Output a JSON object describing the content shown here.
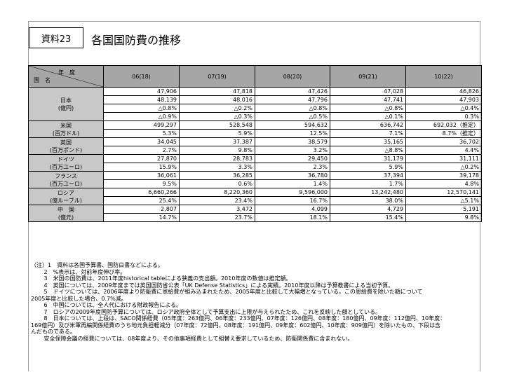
{
  "title": {
    "label": "資料23",
    "text": "各国国防費の推移"
  },
  "header": {
    "corner_year": "年　度",
    "corner_country": "国　名",
    "years": [
      "06(18)",
      "07(19)",
      "08(20)",
      "09(21)",
      "10(22)"
    ]
  },
  "countries": [
    {
      "name": "日本",
      "unit": "(億円)",
      "rows": [
        [
          "47,906",
          "47,818",
          "47,426",
          "47,028",
          "46,826"
        ],
        [
          "48,139",
          "48,016",
          "47,796",
          "47,741",
          "47,903"
        ],
        [
          "△0.8%",
          "△0.2%",
          "△0.8%",
          "△0.8%",
          "△0.4%"
        ],
        [
          "△0.9%",
          "△0.3%",
          "△0.5%",
          "△0.1%",
          "0.3%"
        ]
      ]
    },
    {
      "name": "米国",
      "unit": "(百万ドル)",
      "rows": [
        [
          "499,297",
          "528,548",
          "594,632",
          "636,742",
          "692,032（推定）"
        ],
        [
          "5.3%",
          "5.9%",
          "12.5%",
          "7.1%",
          "8.7%（推定）"
        ]
      ]
    },
    {
      "name": "英国",
      "unit": "(百万ポンド)",
      "rows": [
        [
          "34,045",
          "37,387",
          "38,579",
          "35,165",
          "36,702"
        ],
        [
          "2.7%",
          "9.8%",
          "3.2%",
          "△8.8%",
          "4.4%"
        ]
      ]
    },
    {
      "name": "ドイツ",
      "unit": "(百万ユーロ)",
      "rows": [
        [
          "27,870",
          "28,783",
          "29,450",
          "31,179",
          "31,111"
        ],
        [
          "15.9%",
          "3.3%",
          "2.3%",
          "5.9%",
          "△0.2%"
        ]
      ]
    },
    {
      "name": "フランス",
      "unit": "(百万ユーロ)",
      "rows": [
        [
          "36,061",
          "36,285",
          "36,780",
          "37,394",
          "39,178"
        ],
        [
          "9.5%",
          "0.6%",
          "1.4%",
          "1.7%",
          "4.8%"
        ]
      ]
    },
    {
      "name": "ロシア",
      "unit": "(億ルーブル)",
      "rows": [
        [
          "6,660,266",
          "8,220,360",
          "9,596,000",
          "13,242,480",
          "12,570,141"
        ],
        [
          "25.4%",
          "23.4%",
          "16.7%",
          "38.0%",
          "△5.1%"
        ]
      ]
    },
    {
      "name": "中　国",
      "unit": "(億元)",
      "rows": [
        [
          "2,807",
          "3,472",
          "4,099",
          "4,729",
          "5,191"
        ],
        [
          "14.7%",
          "23.7%",
          "18.1%",
          "15.4%",
          "9.8%"
        ]
      ]
    }
  ],
  "notes": [
    "（注）1　資料は各国予算書、国防白書などによる。",
    "　　 2　%表示は、対前年度伸び率。",
    "　　 3　米国の国防費は、2011年度historical tableによる狭義の支出額。2010年度の数値は推定額。",
    "　　 4　英国については、2009年度までは英国国防省公表「UK Defense Statistics」による実績。2010年度以降は予算教書による当初予算。",
    "　　 5　ドイツについては、2006年度より防衛費に恩給費が組み込まれたため、2005年度と比較して大幅増となっている。この恩給費を除いた額について",
    "2005年度と比較した場合、0.7%減。",
    "　　 6　中国については、全人代における財政報告による。",
    "　　 7　ロシアの2009年度国防予算については、ロシア政府全体として予算支出に上限が与えられたため、これを反映した額としている。",
    "　　 8　日本については、上段は、SACO関係経費（05年度：263億円、06年度：233億円、07年度：126億円、08年度：180億円、09年度：112億円、10年度：",
    "169億円）及び米軍再編関係経費のうち地元負担軽減分（07年度：72億円、08年度：191億円、09年度：602億円、10年度：909億円）を除いたもの、下段は含",
    "んだものである。",
    "　　 安全保障会議の経費については、08年度より、その他事項経費として組替え要求しているため、防衛関係費に含まれない。"
  ]
}
